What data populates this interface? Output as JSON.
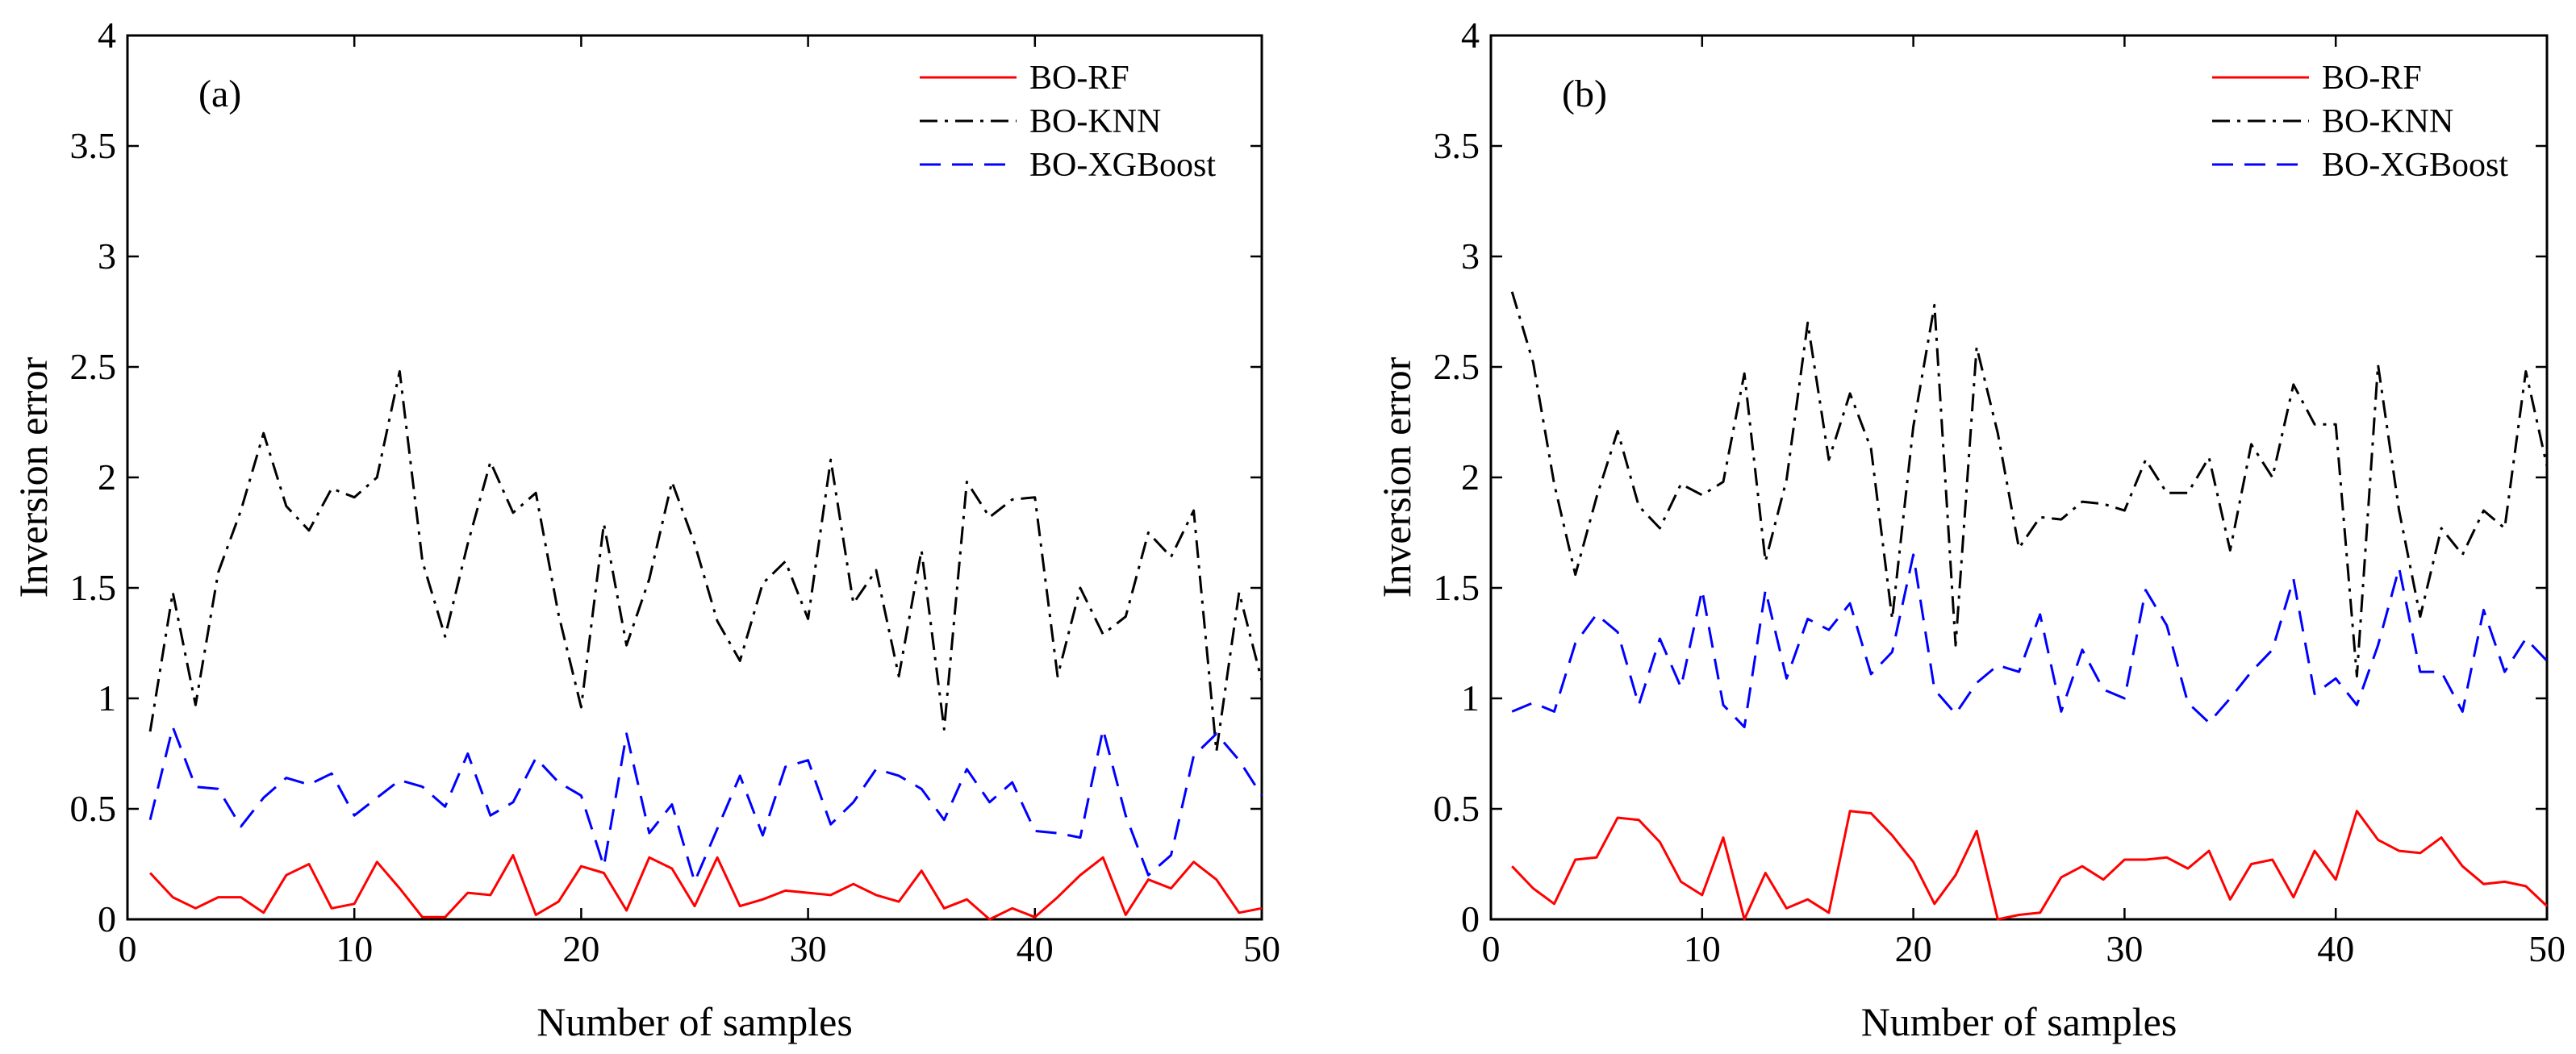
{
  "chart_data": [
    {
      "type": "line",
      "panel_label": "(a)",
      "xlabel": "Number of samples",
      "ylabel": "Inversion error",
      "xlim": [
        0,
        50
      ],
      "ylim": [
        0,
        4
      ],
      "xticks": [
        0,
        10,
        20,
        30,
        40,
        50
      ],
      "yticks": [
        0,
        0.5,
        1,
        1.5,
        2,
        2.5,
        3,
        3.5,
        4
      ],
      "ytick_labels": [
        "0",
        "0.5",
        "1",
        "1.5",
        "2",
        "2.5",
        "3",
        "3.5",
        "4"
      ],
      "legend": "top-right",
      "x": [
        1,
        2,
        3,
        4,
        5,
        6,
        7,
        8,
        9,
        10,
        11,
        12,
        13,
        14,
        15,
        16,
        17,
        18,
        19,
        20,
        21,
        22,
        23,
        24,
        25,
        26,
        27,
        28,
        29,
        30,
        31,
        32,
        33,
        34,
        35,
        36,
        37,
        38,
        39,
        40,
        41,
        42,
        43,
        44,
        45,
        46,
        47,
        48,
        49,
        50
      ],
      "series": [
        {
          "name": "BO-RF",
          "color": "#ff0000",
          "dash": "solid",
          "values": [
            0.21,
            0.1,
            0.05,
            0.1,
            0.1,
            0.03,
            0.2,
            0.25,
            0.05,
            0.07,
            0.26,
            0.14,
            0.01,
            0.01,
            0.12,
            0.11,
            0.29,
            0.02,
            0.08,
            0.24,
            0.21,
            0.04,
            0.28,
            0.23,
            0.06,
            0.28,
            0.06,
            0.09,
            0.13,
            0.12,
            0.11,
            0.16,
            0.11,
            0.08,
            0.22,
            0.05,
            0.09,
            0.0,
            0.05,
            0.01,
            0.1,
            0.2,
            0.28,
            0.02,
            0.18,
            0.14,
            0.26,
            0.18,
            0.03,
            0.05
          ]
        },
        {
          "name": "BO-KNN",
          "color": "#000000",
          "dash": "dashdot",
          "values": [
            0.85,
            1.48,
            0.97,
            1.57,
            1.85,
            2.2,
            1.87,
            1.76,
            1.95,
            1.91,
            2.0,
            2.48,
            1.62,
            1.28,
            1.7,
            2.07,
            1.84,
            1.93,
            1.38,
            0.96,
            1.79,
            1.24,
            1.54,
            1.98,
            1.7,
            1.35,
            1.17,
            1.52,
            1.62,
            1.36,
            2.08,
            1.43,
            1.58,
            1.1,
            1.67,
            0.86,
            1.98,
            1.82,
            1.9,
            1.91,
            1.1,
            1.5,
            1.29,
            1.37,
            1.75,
            1.64,
            1.85,
            0.76,
            1.48,
            1.08
          ]
        },
        {
          "name": "BO-XGBoost",
          "color": "#0000ff",
          "dash": "dashed",
          "values": [
            0.45,
            0.87,
            0.6,
            0.59,
            0.42,
            0.55,
            0.64,
            0.61,
            0.66,
            0.47,
            0.55,
            0.63,
            0.6,
            0.51,
            0.75,
            0.47,
            0.53,
            0.73,
            0.62,
            0.56,
            0.24,
            0.84,
            0.39,
            0.52,
            0.17,
            0.41,
            0.65,
            0.38,
            0.69,
            0.72,
            0.43,
            0.53,
            0.68,
            0.65,
            0.59,
            0.45,
            0.68,
            0.53,
            0.62,
            0.4,
            0.39,
            0.37,
            0.86,
            0.47,
            0.2,
            0.29,
            0.74,
            0.84,
            0.72,
            0.56
          ]
        }
      ]
    },
    {
      "type": "line",
      "panel_label": "(b)",
      "xlabel": "Number of samples",
      "ylabel": "Inversion error",
      "xlim": [
        0,
        50
      ],
      "ylim": [
        0,
        4
      ],
      "xticks": [
        0,
        10,
        20,
        30,
        40,
        50
      ],
      "yticks": [
        0,
        0.5,
        1,
        1.5,
        2,
        2.5,
        3,
        3.5,
        4
      ],
      "ytick_labels": [
        "0",
        "0.5",
        "1",
        "1.5",
        "2",
        "2.5",
        "3",
        "3.5",
        "4"
      ],
      "legend": "top-right",
      "x": [
        1,
        2,
        3,
        4,
        5,
        6,
        7,
        8,
        9,
        10,
        11,
        12,
        13,
        14,
        15,
        16,
        17,
        18,
        19,
        20,
        21,
        22,
        23,
        24,
        25,
        26,
        27,
        28,
        29,
        30,
        31,
        32,
        33,
        34,
        35,
        36,
        37,
        38,
        39,
        40,
        41,
        42,
        43,
        44,
        45,
        46,
        47,
        48,
        49,
        50
      ],
      "series": [
        {
          "name": "BO-RF",
          "color": "#ff0000",
          "dash": "solid",
          "values": [
            0.24,
            0.14,
            0.07,
            0.27,
            0.28,
            0.46,
            0.45,
            0.35,
            0.17,
            0.11,
            0.37,
            0.0,
            0.21,
            0.05,
            0.09,
            0.03,
            0.49,
            0.48,
            0.38,
            0.26,
            0.07,
            0.2,
            0.4,
            0.0,
            0.02,
            0.03,
            0.19,
            0.24,
            0.18,
            0.27,
            0.27,
            0.28,
            0.23,
            0.31,
            0.09,
            0.25,
            0.27,
            0.1,
            0.31,
            0.18,
            0.49,
            0.36,
            0.31,
            0.3,
            0.37,
            0.24,
            0.16,
            0.17,
            0.15,
            0.06
          ]
        },
        {
          "name": "BO-KNN",
          "color": "#000000",
          "dash": "dashdot",
          "values": [
            2.84,
            2.52,
            1.97,
            1.56,
            1.91,
            2.21,
            1.87,
            1.77,
            1.97,
            1.92,
            1.98,
            2.47,
            1.62,
            1.99,
            2.7,
            2.08,
            2.38,
            2.13,
            1.36,
            2.23,
            2.78,
            1.24,
            2.59,
            2.2,
            1.68,
            1.82,
            1.81,
            1.89,
            1.88,
            1.85,
            2.08,
            1.93,
            1.93,
            2.09,
            1.67,
            2.15,
            2.0,
            2.42,
            2.24,
            2.24,
            1.1,
            2.51,
            1.85,
            1.37,
            1.77,
            1.65,
            1.85,
            1.77,
            2.48,
            2.05
          ]
        },
        {
          "name": "BO-XGBoost",
          "color": "#0000ff",
          "dash": "dashed",
          "values": [
            0.94,
            0.98,
            0.94,
            1.25,
            1.38,
            1.3,
            0.97,
            1.27,
            1.05,
            1.49,
            0.97,
            0.87,
            1.49,
            1.09,
            1.36,
            1.31,
            1.43,
            1.11,
            1.21,
            1.65,
            1.04,
            0.93,
            1.07,
            1.15,
            1.12,
            1.38,
            0.94,
            1.22,
            1.04,
            1.0,
            1.49,
            1.33,
            0.98,
            0.89,
            1.0,
            1.12,
            1.22,
            1.54,
            1.02,
            1.09,
            0.97,
            1.24,
            1.59,
            1.12,
            1.12,
            0.94,
            1.4,
            1.12,
            1.27,
            1.17
          ]
        }
      ]
    }
  ]
}
